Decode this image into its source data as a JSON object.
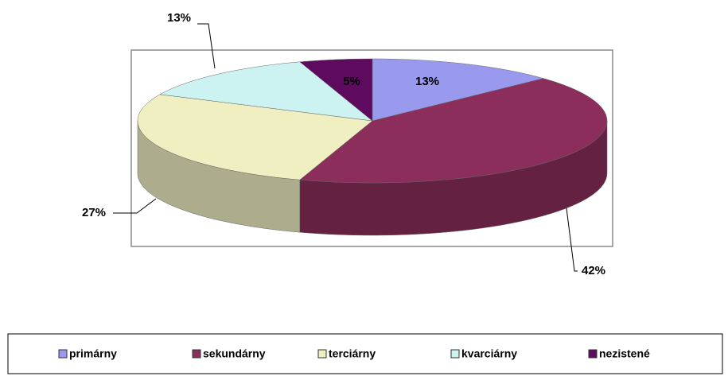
{
  "chart_data": {
    "type": "pie",
    "three_d": true,
    "categories": [
      "primárny",
      "sekundárny",
      "terciárny",
      "kvarciárny",
      "nezistené"
    ],
    "values": [
      13,
      42,
      27,
      13,
      5
    ],
    "value_labels": [
      "13%",
      "42%",
      "27%",
      "13%",
      "5%"
    ],
    "colors": [
      "#9999ee",
      "#8b2e5c",
      "#f0efc2",
      "#ccf2f2",
      "#5e0a5e"
    ],
    "legend": "bottom"
  }
}
